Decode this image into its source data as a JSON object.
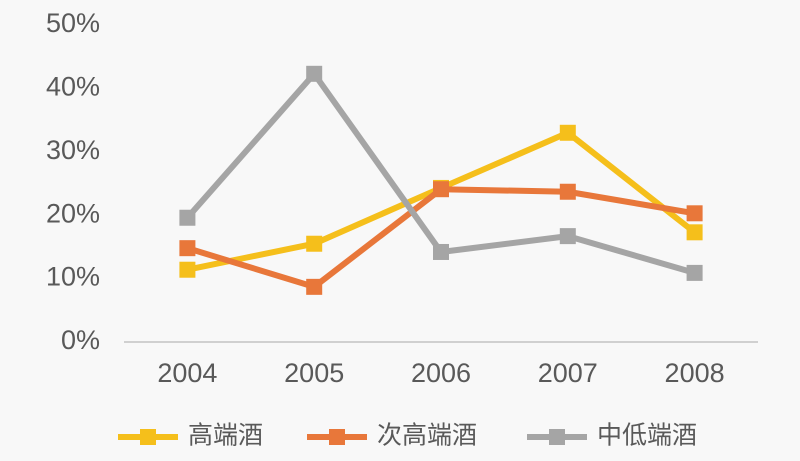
{
  "chart_data": {
    "type": "line",
    "categories": [
      "2004",
      "2005",
      "2006",
      "2007",
      "2008"
    ],
    "series": [
      {
        "name": "高端酒",
        "color": "#f5bf1b",
        "values": [
          11.4,
          15.5,
          24.3,
          33,
          17.3
        ]
      },
      {
        "name": "次高端酒",
        "color": "#e8773a",
        "values": [
          14.8,
          8.7,
          24.1,
          23.7,
          20.3
        ]
      },
      {
        "name": "中低端酒",
        "color": "#a5a5a5",
        "values": [
          19.6,
          42.3,
          14.2,
          16.7,
          10.9
        ]
      }
    ],
    "ylim": [
      0,
      50
    ],
    "yticks": [
      {
        "value": 0,
        "label": "0%"
      },
      {
        "value": 10,
        "label": "10%"
      },
      {
        "value": 20,
        "label": "20%"
      },
      {
        "value": 30,
        "label": "30%"
      },
      {
        "value": 40,
        "label": "40%"
      },
      {
        "value": 50,
        "label": "50%"
      }
    ],
    "grid": false,
    "legend": "bottom"
  }
}
